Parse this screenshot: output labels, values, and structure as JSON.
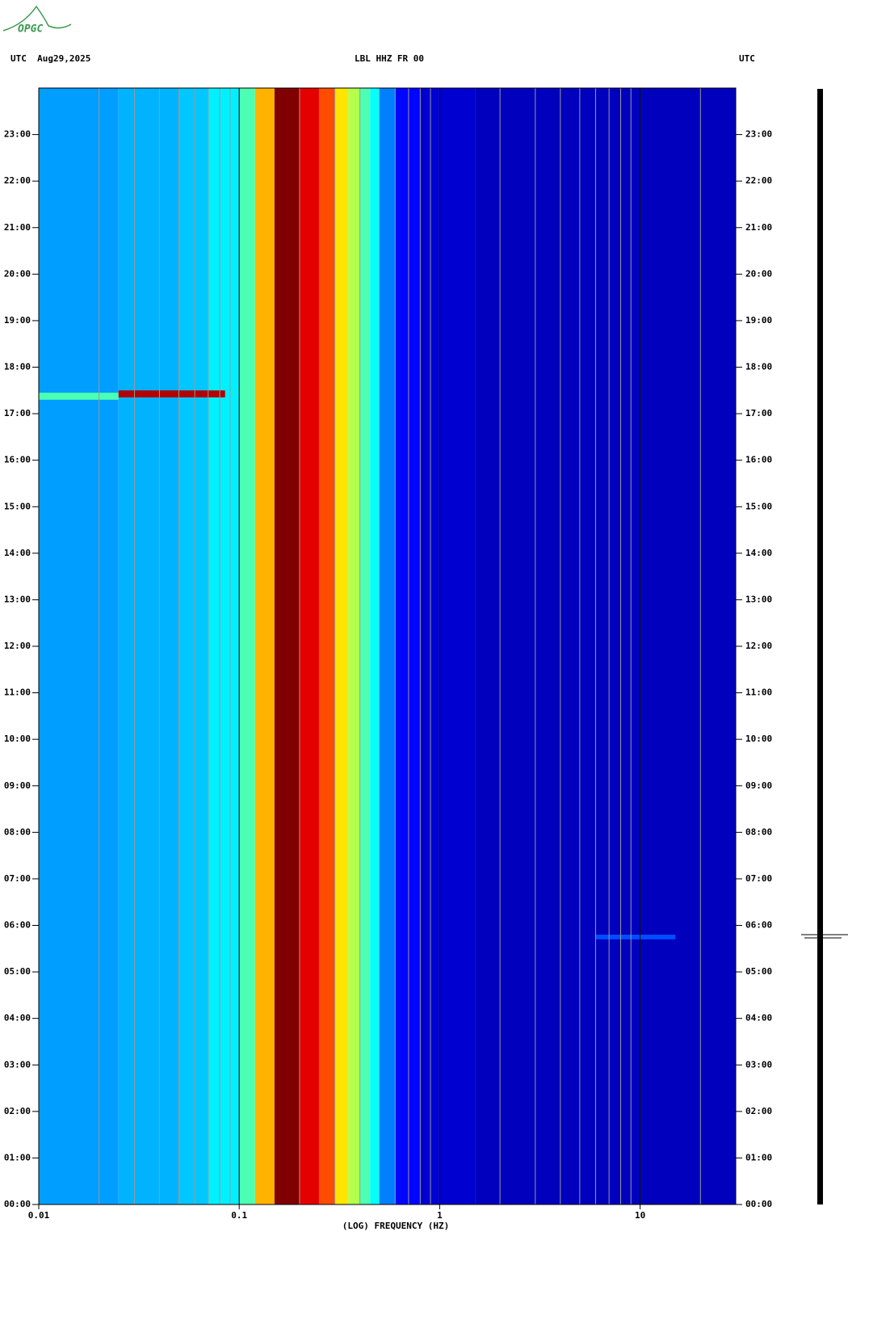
{
  "chart_data": {
    "type": "spectrogram",
    "logo": "OPGC",
    "header_left": "UTC  Aug29,2025",
    "title": "LBL HHZ FR 00",
    "header_right": "UTC",
    "xlabel": "(LOG) FREQUENCY (HZ)",
    "xscale": "log",
    "xlim": [
      0.01,
      30
    ],
    "xticks": [
      0.01,
      0.1,
      1,
      10
    ],
    "xgrid": [
      0.02,
      0.03,
      0.04,
      0.05,
      0.06,
      0.07,
      0.08,
      0.09,
      0.1,
      0.2,
      0.3,
      0.4,
      0.5,
      0.6,
      0.7,
      0.8,
      0.9,
      1,
      2,
      3,
      4,
      5,
      6,
      7,
      8,
      9,
      10,
      20
    ],
    "ylim": [
      0,
      24
    ],
    "yticks": [
      {
        "value": 0,
        "label": "00:00"
      },
      {
        "value": 1,
        "label": "01:00"
      },
      {
        "value": 2,
        "label": "02:00"
      },
      {
        "value": 3,
        "label": "03:00"
      },
      {
        "value": 4,
        "label": "04:00"
      },
      {
        "value": 5,
        "label": "05:00"
      },
      {
        "value": 6,
        "label": "06:00"
      },
      {
        "value": 7,
        "label": "07:00"
      },
      {
        "value": 8,
        "label": "08:00"
      },
      {
        "value": 9,
        "label": "09:00"
      },
      {
        "value": 10,
        "label": "10:00"
      },
      {
        "value": 11,
        "label": "11:00"
      },
      {
        "value": 12,
        "label": "12:00"
      },
      {
        "value": 13,
        "label": "13:00"
      },
      {
        "value": 14,
        "label": "14:00"
      },
      {
        "value": 15,
        "label": "15:00"
      },
      {
        "value": 16,
        "label": "16:00"
      },
      {
        "value": 17,
        "label": "17:00"
      },
      {
        "value": 18,
        "label": "18:00"
      },
      {
        "value": 19,
        "label": "19:00"
      },
      {
        "value": 20,
        "label": "20:00"
      },
      {
        "value": 21,
        "label": "21:00"
      },
      {
        "value": 22,
        "label": "22:00"
      },
      {
        "value": 23,
        "label": "23:00"
      }
    ],
    "colormap": "jet",
    "frequency_edges": [
      0.01,
      0.025,
      0.05,
      0.07,
      0.1,
      0.12,
      0.15,
      0.2,
      0.25,
      0.3,
      0.35,
      0.4,
      0.45,
      0.5,
      0.6,
      0.8,
      1.5,
      30
    ],
    "levels": [
      0.28,
      0.3,
      0.32,
      0.36,
      0.45,
      0.7,
      1.0,
      0.9,
      0.8,
      0.65,
      0.55,
      0.45,
      0.38,
      0.25,
      0.13,
      0.08,
      0.06
    ],
    "events": [
      {
        "t": [
          17.3,
          17.45
        ],
        "f": [
          0.01,
          0.025
        ],
        "level": 0.45
      },
      {
        "t": [
          17.35,
          17.5
        ],
        "f": [
          0.025,
          0.085
        ],
        "level": 0.95
      },
      {
        "t": [
          5.7,
          5.8
        ],
        "f": [
          6,
          15
        ],
        "level": 0.2
      }
    ]
  }
}
